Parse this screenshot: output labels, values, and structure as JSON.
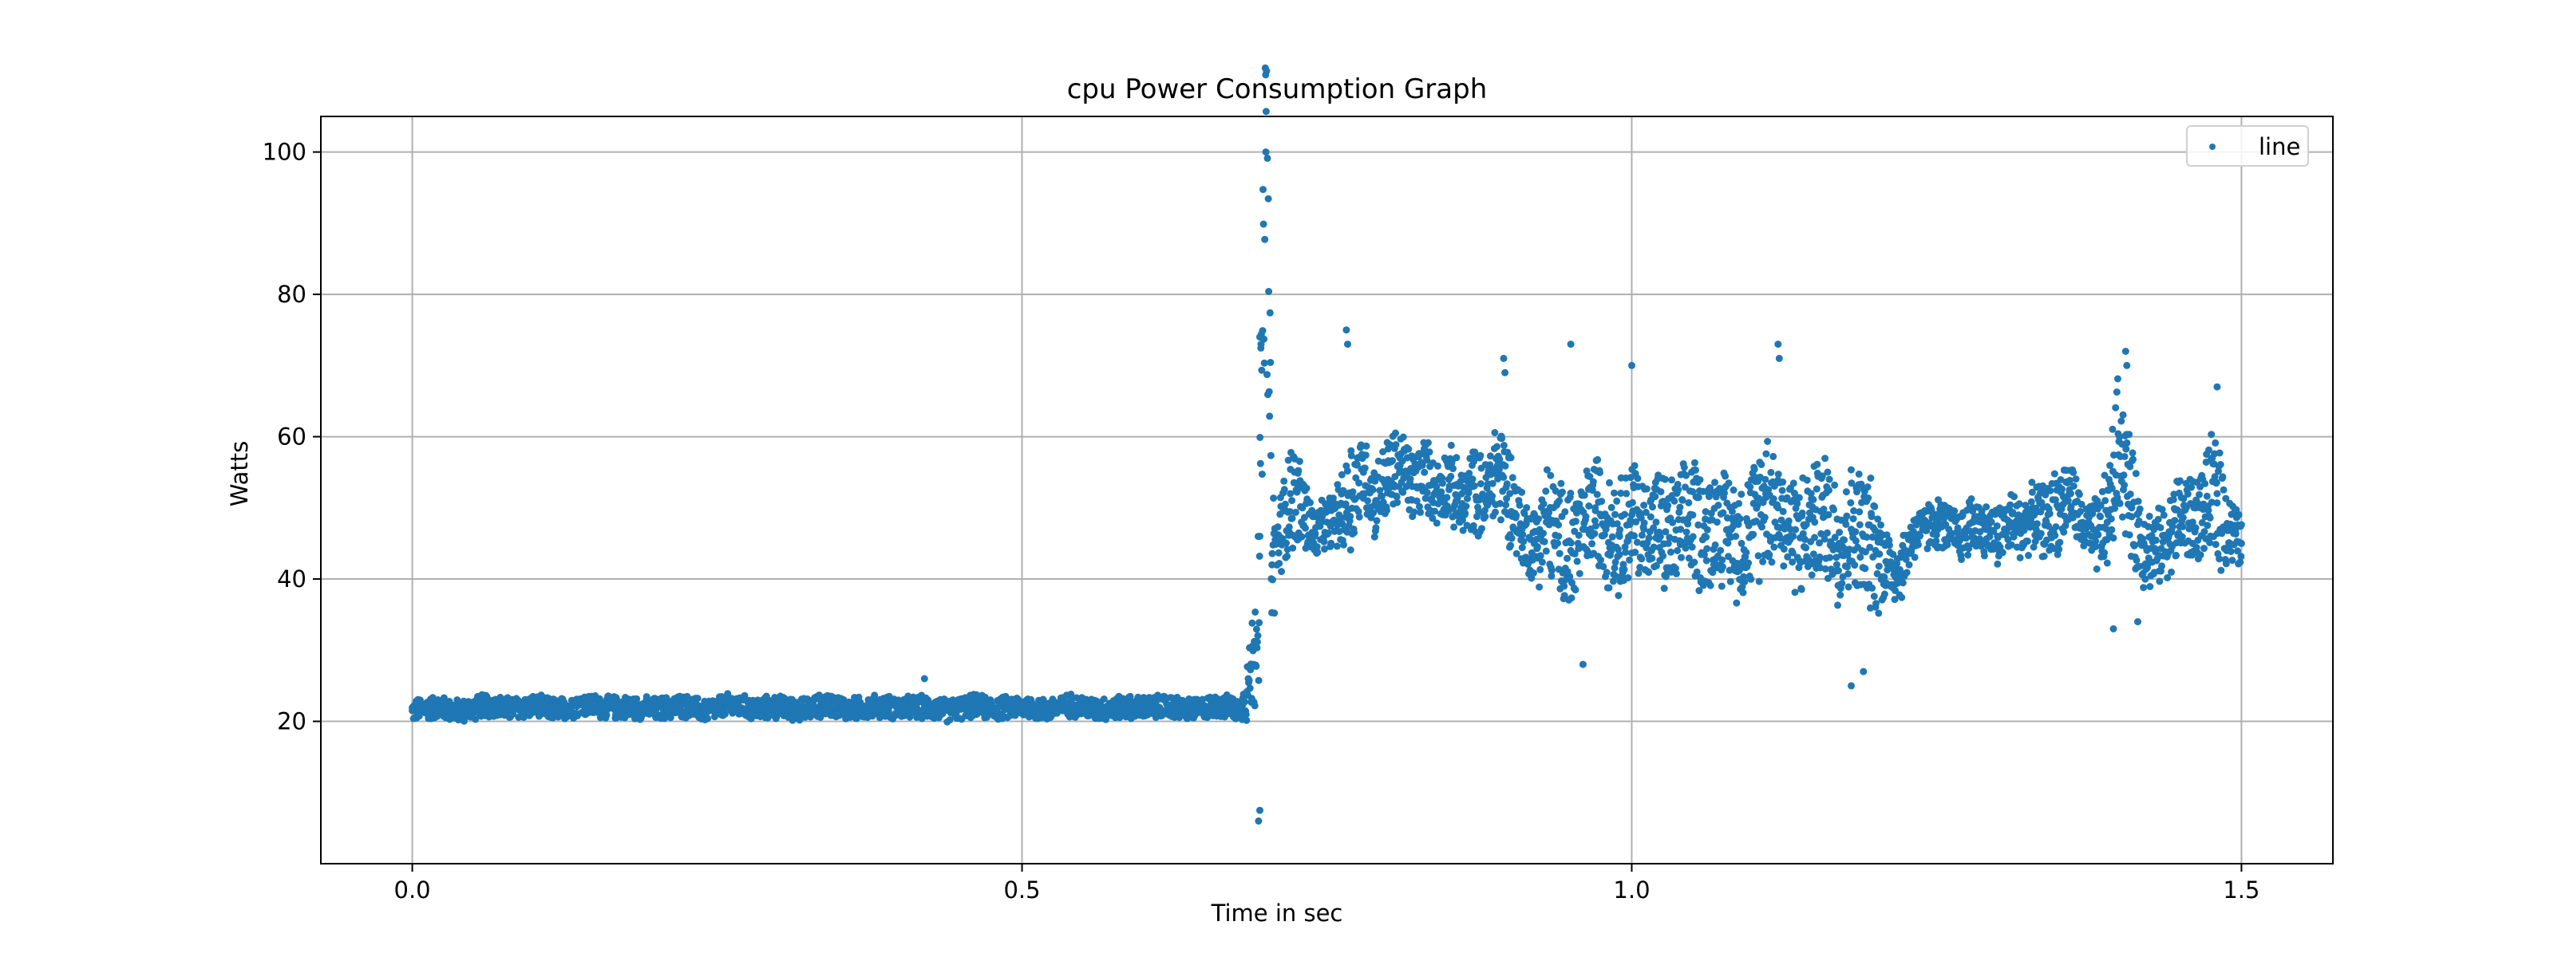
{
  "chart_data": {
    "type": "scatter",
    "title": "cpu Power Consumption Graph",
    "xlabel": "Time in sec",
    "ylabel": "Watts",
    "xlim": [
      -0.075,
      1.575
    ],
    "ylim": [
      0,
      105
    ],
    "xticks": [
      0.0,
      0.5,
      1.0,
      1.5
    ],
    "xtick_labels": [
      "0.0",
      "0.5",
      "1.0",
      "1.5"
    ],
    "yticks": [
      20,
      40,
      60,
      80,
      100
    ],
    "ytick_labels": [
      "20",
      "40",
      "60",
      "80",
      "100"
    ],
    "grid": true,
    "legend_position": "top-right",
    "color": "#1f77b4",
    "series": [
      {
        "name": "line",
        "x": [
          0.0,
          0.02,
          0.04,
          0.06,
          0.08,
          0.1,
          0.12,
          0.14,
          0.16,
          0.18,
          0.2,
          0.22,
          0.24,
          0.26,
          0.28,
          0.3,
          0.32,
          0.34,
          0.36,
          0.38,
          0.4,
          0.42,
          0.44,
          0.46,
          0.48,
          0.5,
          0.52,
          0.54,
          0.56,
          0.58,
          0.6,
          0.62,
          0.64,
          0.66,
          0.68,
          0.69,
          0.695,
          0.7,
          0.705,
          0.71,
          0.72,
          0.73,
          0.74,
          0.75,
          0.76,
          0.77,
          0.78,
          0.79,
          0.8,
          0.81,
          0.82,
          0.83,
          0.84,
          0.85,
          0.86,
          0.87,
          0.88,
          0.89,
          0.9,
          0.91,
          0.92,
          0.93,
          0.94,
          0.95,
          0.96,
          0.97,
          0.98,
          0.99,
          1.0,
          1.01,
          1.02,
          1.03,
          1.04,
          1.05,
          1.06,
          1.07,
          1.08,
          1.09,
          1.1,
          1.11,
          1.12,
          1.13,
          1.14,
          1.15,
          1.16,
          1.17,
          1.18,
          1.19,
          1.2,
          1.21,
          1.22,
          1.23,
          1.24,
          1.25,
          1.26,
          1.27,
          1.28,
          1.29,
          1.3,
          1.31,
          1.32,
          1.33,
          1.34,
          1.35,
          1.36,
          1.37,
          1.38,
          1.39,
          1.4,
          1.41,
          1.42,
          1.43,
          1.44,
          1.45,
          1.46,
          1.47,
          1.48,
          1.49,
          1.5
        ],
        "y": [
          21.5,
          22.0,
          21.4,
          22.3,
          21.8,
          22.1,
          21.6,
          22.4,
          21.9,
          22.0,
          21.7,
          22.2,
          21.5,
          22.3,
          21.8,
          22.0,
          21.6,
          22.4,
          21.7,
          22.1,
          21.9,
          22.0,
          21.5,
          22.2,
          21.8,
          22.1,
          21.6,
          22.3,
          21.7,
          22.0,
          21.9,
          22.1,
          21.6,
          22.2,
          21.8,
          28.0,
          46.0,
          100.0,
          42.0,
          45.0,
          52.0,
          50.0,
          46.0,
          48.0,
          49.0,
          52.0,
          55.0,
          51.0,
          54.0,
          56.0,
          53.0,
          55.0,
          52.0,
          54.0,
          50.0,
          53.0,
          51.0,
          56.0,
          52.0,
          47.0,
          45.0,
          48.0,
          46.0,
          44.0,
          47.0,
          50.0,
          48.0,
          46.0,
          49.0,
          47.0,
          48.0,
          45.0,
          47.0,
          49.0,
          46.0,
          48.0,
          47.0,
          45.0,
          48.0,
          52.0,
          50.0,
          47.0,
          46.0,
          48.0,
          49.0,
          45.0,
          47.0,
          46.0,
          44.0,
          42.0,
          41.0,
          46.0,
          47.0,
          48.0,
          47.0,
          46.0,
          48.0,
          47.0,
          46.0,
          48.0,
          47.0,
          49.0,
          48.0,
          50.0,
          52.0,
          47.0,
          46.0,
          48.0,
          60.0,
          50.0,
          45.0,
          44.0,
          46.0,
          49.0,
          48.0,
          50.0,
          52.0,
          47.0,
          45.0
        ],
        "spread": [
          1.8,
          1.8,
          1.8,
          1.8,
          1.8,
          1.8,
          1.8,
          1.8,
          1.8,
          1.8,
          1.8,
          1.8,
          1.8,
          1.8,
          1.8,
          1.8,
          1.8,
          1.8,
          1.8,
          1.8,
          1.8,
          1.8,
          1.8,
          1.8,
          1.8,
          1.8,
          1.8,
          1.8,
          1.8,
          1.8,
          1.8,
          1.8,
          1.8,
          1.8,
          1.8,
          10.0,
          20.0,
          30.0,
          14.0,
          6.0,
          9.0,
          7.0,
          4.0,
          4.0,
          5.0,
          10.0,
          6.0,
          6.0,
          7.0,
          6.0,
          6.0,
          6.0,
          5.0,
          6.0,
          6.0,
          7.0,
          6.0,
          9.0,
          8.0,
          6.0,
          6.0,
          10.0,
          8.0,
          12.0,
          8.0,
          9.0,
          10.0,
          9.0,
          10.0,
          8.0,
          9.0,
          10.0,
          9.0,
          10.0,
          10.0,
          9.0,
          9.0,
          10.0,
          10.0,
          12.0,
          8.0,
          9.0,
          10.0,
          9.0,
          10.0,
          11.0,
          10.0,
          11.0,
          10.0,
          6.0,
          5.0,
          4.0,
          4.0,
          4.0,
          4.0,
          4.0,
          5.0,
          4.0,
          5.0,
          5.0,
          5.0,
          5.0,
          6.0,
          7.0,
          6.0,
          4.0,
          6.0,
          8.0,
          12.0,
          9.0,
          7.0,
          6.0,
          6.0,
          8.0,
          7.0,
          7.0,
          12.0,
          6.0,
          4.0
        ]
      }
    ],
    "outliers": [
      {
        "x": 0.695,
        "y": 74.0
      },
      {
        "x": 0.696,
        "y": 73.0
      },
      {
        "x": 0.694,
        "y": 6.0
      },
      {
        "x": 0.695,
        "y": 7.5
      },
      {
        "x": 0.766,
        "y": 75.0
      },
      {
        "x": 0.767,
        "y": 73.0
      },
      {
        "x": 0.895,
        "y": 71.0
      },
      {
        "x": 0.896,
        "y": 69.0
      },
      {
        "x": 0.95,
        "y": 73.0
      },
      {
        "x": 1.0,
        "y": 70.0
      },
      {
        "x": 1.12,
        "y": 73.0
      },
      {
        "x": 1.121,
        "y": 71.0
      },
      {
        "x": 1.405,
        "y": 72.0
      },
      {
        "x": 1.406,
        "y": 70.0
      },
      {
        "x": 1.48,
        "y": 67.0
      },
      {
        "x": 0.42,
        "y": 26.0
      },
      {
        "x": 1.18,
        "y": 25.0
      },
      {
        "x": 1.19,
        "y": 27.0
      },
      {
        "x": 0.96,
        "y": 28.0
      },
      {
        "x": 1.395,
        "y": 33.0
      },
      {
        "x": 1.415,
        "y": 34.0
      }
    ]
  }
}
